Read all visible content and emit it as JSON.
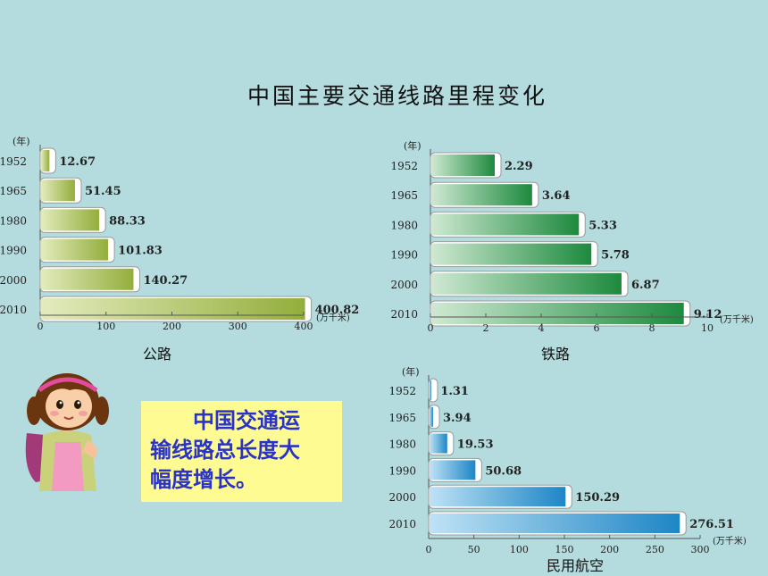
{
  "title": "中国主要交通线路里程变化",
  "callout_lines": [
    "中国交通运",
    "输线路总长度大",
    "幅度增长。"
  ],
  "chart_data": [
    {
      "type": "bar",
      "caption": "公路",
      "year_label": "(年)",
      "unit": "(万千米)",
      "categories": [
        "1952",
        "1965",
        "1980",
        "1990",
        "2000",
        "2010"
      ],
      "values": [
        12.67,
        51.45,
        88.33,
        101.83,
        140.27,
        400.82
      ],
      "value_labels": [
        "12.67",
        "51.45",
        "88.33",
        "101.83",
        "140.27",
        "400.82"
      ],
      "xlim": [
        0,
        400
      ],
      "ticks": [
        "0",
        "100",
        "200",
        "300",
        "400"
      ],
      "color_dark": "#93ae3c",
      "color_light": "#e3ebbd"
    },
    {
      "type": "bar",
      "caption": "铁路",
      "year_label": "(年)",
      "unit": "(万千米)",
      "categories": [
        "1952",
        "1965",
        "1980",
        "1990",
        "2000",
        "2010"
      ],
      "values": [
        2.29,
        3.64,
        5.33,
        5.78,
        6.87,
        9.12
      ],
      "value_labels": [
        "2.29",
        "3.64",
        "5.33",
        "5.78",
        "6.87",
        "9.12"
      ],
      "xlim": [
        0,
        10
      ],
      "ticks": [
        "0",
        "2",
        "4",
        "6",
        "8",
        "10"
      ],
      "color_dark": "#1d8a3e",
      "color_light": "#cfe9d2"
    },
    {
      "type": "bar",
      "caption": "民用航空",
      "year_label": "(年)",
      "unit": "(万千米)",
      "categories": [
        "1952",
        "1965",
        "1980",
        "1990",
        "2000",
        "2010"
      ],
      "values": [
        1.31,
        3.94,
        19.53,
        50.68,
        150.29,
        276.51
      ],
      "value_labels": [
        "1.31",
        "3.94",
        "19.53",
        "50.68",
        "150.29",
        "276.51"
      ],
      "xlim": [
        0,
        300
      ],
      "ticks": [
        "0",
        "50",
        "100",
        "150",
        "200",
        "250",
        "300"
      ],
      "color_dark": "#1d86c6",
      "color_light": "#bfe2f5"
    }
  ]
}
